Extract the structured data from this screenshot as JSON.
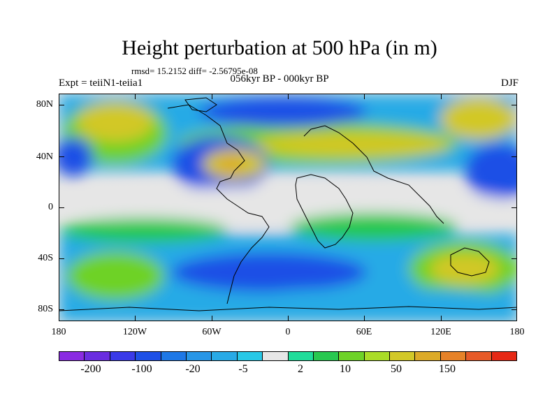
{
  "title": "Height perturbation at 500 hPa (in m)",
  "rmsd_text": "rmsd= 15.2152 diff= -2.56795e-08",
  "experiment": "Expt = teiiN1-teiia1",
  "period": "056kyr BP - 000kyr BP",
  "season": "DJF",
  "lat_labels": [
    "80N",
    "40N",
    "0",
    "40S",
    "80S"
  ],
  "lon_labels": [
    "180",
    "120W",
    "60W",
    "0",
    "60E",
    "120E",
    "180"
  ],
  "colorbar": {
    "colors": [
      "#8a2be2",
      "#6a2de0",
      "#3a3ae8",
      "#1e50e6",
      "#1e78e6",
      "#2896e6",
      "#28aae6",
      "#28c8e6",
      "#e6e6e6",
      "#20dc9a",
      "#28c850",
      "#6ed228",
      "#aadc28",
      "#d2c828",
      "#dcaa28",
      "#e68228",
      "#e65a28",
      "#e62814"
    ],
    "labels": [
      "-200",
      "-100",
      "-20",
      "-5",
      "2",
      "10",
      "50",
      "150"
    ]
  },
  "map_data": {
    "projection": "cylindrical equidistant",
    "lon_range": [
      -180,
      180
    ],
    "lat_range": [
      -90,
      90
    ],
    "field": "500 hPa geopotential height perturbation (m)"
  }
}
